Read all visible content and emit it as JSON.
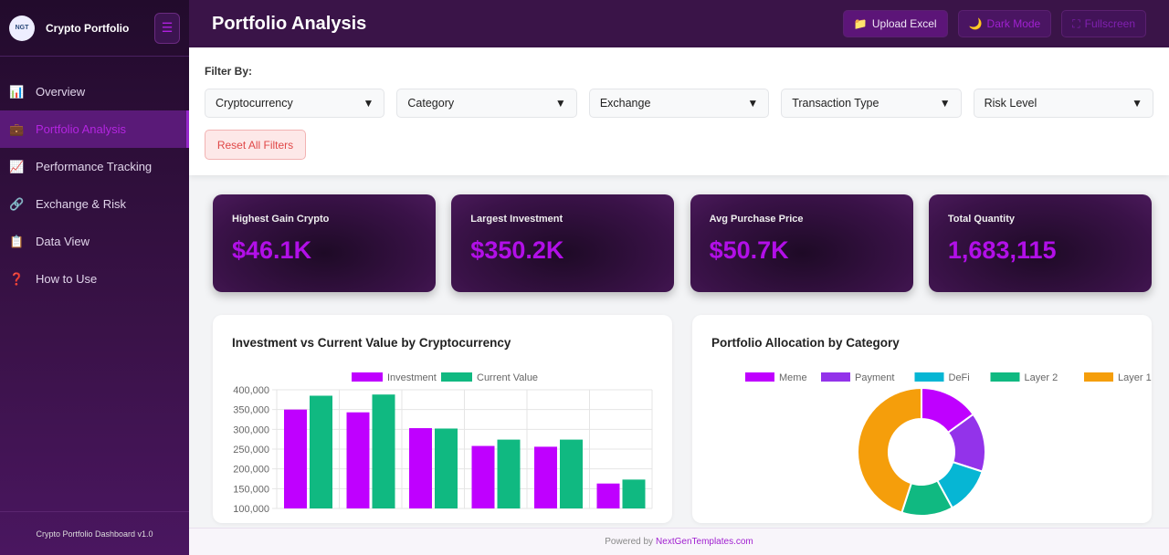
{
  "sidebar": {
    "brand": "Crypto Portfolio",
    "logo_text": "NGT",
    "menu_icon": "hamburger-icon",
    "items": [
      {
        "label": "Overview",
        "icon": "📊"
      },
      {
        "label": "Portfolio Analysis",
        "icon": "💼",
        "active": true
      },
      {
        "label": "Performance Tracking",
        "icon": "📈"
      },
      {
        "label": "Exchange & Risk",
        "icon": "🔗"
      },
      {
        "label": "Data View",
        "icon": "📋"
      },
      {
        "label": "How to Use",
        "icon": "❓"
      }
    ],
    "footer": "Crypto Portfolio Dashboard v1.0"
  },
  "header": {
    "title": "Portfolio Analysis",
    "upload": "Upload Excel",
    "dark": "Dark Mode",
    "fullscreen": "Fullscreen"
  },
  "filters": {
    "label": "Filter By:",
    "selects": [
      "Cryptocurrency",
      "Category",
      "Exchange",
      "Transaction Type",
      "Risk Level"
    ],
    "reset": "Reset All Filters"
  },
  "kpis": [
    {
      "label": "Highest Gain Crypto",
      "value": "$46.1K"
    },
    {
      "label": "Largest Investment",
      "value": "$350.2K"
    },
    {
      "label": "Avg Purchase Price",
      "value": "$50.7K"
    },
    {
      "label": "Total Quantity",
      "value": "1,683,115"
    }
  ],
  "chart_data": [
    {
      "type": "bar",
      "title": "Investment vs Current Value by Cryptocurrency",
      "ylim": [
        100000,
        400000
      ],
      "yticks": [
        "400,000",
        "350,000",
        "300,000",
        "250,000",
        "200,000",
        "150,000",
        "100,000"
      ],
      "grid": true,
      "legend": "top",
      "series": [
        {
          "name": "Investment",
          "color": "#bf00ff",
          "values": [
            350000,
            343000,
            303000,
            258000,
            256000,
            163000
          ]
        },
        {
          "name": "Current Value",
          "color": "#10b981",
          "values": [
            385000,
            388000,
            302000,
            274000,
            274000,
            173000
          ]
        }
      ]
    },
    {
      "type": "pie",
      "title": "Portfolio Allocation by Category",
      "legend": "top",
      "donut": true,
      "labels": [
        "Meme",
        "Payment",
        "DeFi",
        "Layer 2",
        "Layer 1"
      ],
      "colors": [
        "#bf00ff",
        "#9333ea",
        "#06b6d4",
        "#10b981",
        "#f59e0b"
      ],
      "values": [
        15,
        15,
        12,
        13,
        45
      ]
    }
  ],
  "footer": {
    "text": "Powered by",
    "link": "NextGenTemplates.com"
  }
}
